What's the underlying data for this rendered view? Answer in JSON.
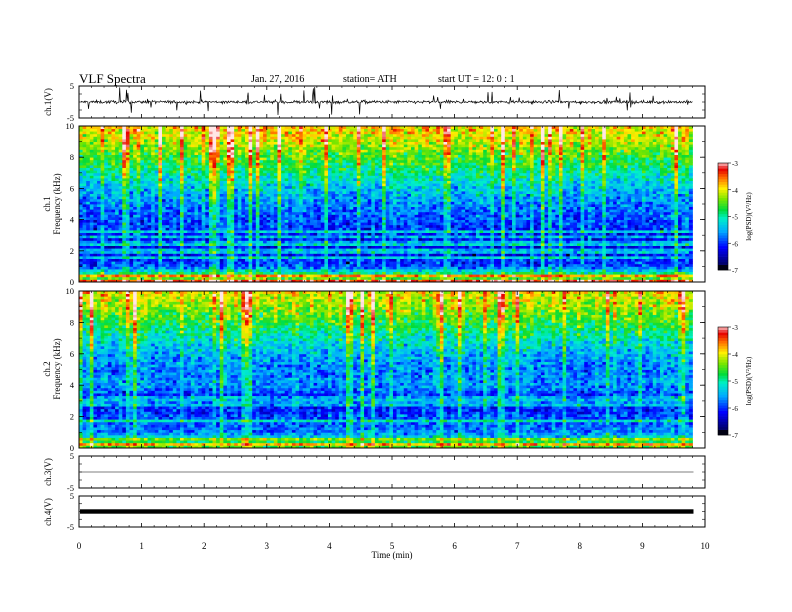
{
  "header": {
    "title": "VLF  Spectra",
    "date": "Jan. 27, 2016",
    "station": "station= ATH",
    "start": "start  UT  =    12: 0  : 1"
  },
  "chart_data": [
    {
      "type": "line",
      "id": "ch1-waveform",
      "ylabel": "ch.1(V)",
      "ylim": [
        -5,
        5
      ],
      "yticks": [
        "5",
        "-5"
      ],
      "xlim": [
        0,
        10
      ],
      "description_values": {
        "baseline_v": 0,
        "typical_amplitude_v": 1.5,
        "max_spike_v": 4.5
      }
    },
    {
      "type": "heatmap",
      "id": "ch1-spectrogram",
      "ylabel": "Frequency  (kHz)",
      "channel_label": "ch.1",
      "ylim": [
        0,
        10
      ],
      "yticks": [
        "0",
        "2",
        "4",
        "6",
        "8",
        "10"
      ],
      "xlim": [
        0,
        10
      ],
      "data_extent_min": 9.8,
      "colorbar": {
        "label": "log(PSD)(V²/Hz)",
        "range": [
          -7,
          -3
        ],
        "ticks": [
          "-3",
          "-4",
          "-5",
          "-6",
          "-7"
        ]
      },
      "profile": [
        {
          "f_khz": 0.0,
          "log_psd": -4.3
        },
        {
          "f_khz": 0.5,
          "log_psd": -4.8
        },
        {
          "f_khz": 1.0,
          "log_psd": -6.0
        },
        {
          "f_khz": 2.0,
          "log_psd": -6.3
        },
        {
          "f_khz": 3.0,
          "log_psd": -6.2
        },
        {
          "f_khz": 4.0,
          "log_psd": -6.0
        },
        {
          "f_khz": 5.0,
          "log_psd": -5.8
        },
        {
          "f_khz": 6.0,
          "log_psd": -5.5
        },
        {
          "f_khz": 7.0,
          "log_psd": -5.1
        },
        {
          "f_khz": 8.0,
          "log_psd": -4.7
        },
        {
          "f_khz": 9.0,
          "log_psd": -4.3
        },
        {
          "f_khz": 10.0,
          "log_psd": -4.0
        }
      ]
    },
    {
      "type": "heatmap",
      "id": "ch2-spectrogram",
      "ylabel": "Frequency  (kHz)",
      "channel_label": "ch.2",
      "ylim": [
        0,
        10
      ],
      "yticks": [
        "0",
        "2",
        "4",
        "6",
        "8",
        "10"
      ],
      "xlim": [
        0,
        10
      ],
      "data_extent_min": 9.8,
      "colorbar": {
        "label": "log(PSD)(V²/Hz)",
        "range": [
          -7,
          -3
        ],
        "ticks": [
          "-3",
          "-4",
          "-5",
          "-6",
          "-7"
        ]
      },
      "profile": [
        {
          "f_khz": 0.0,
          "log_psd": -4.5
        },
        {
          "f_khz": 0.5,
          "log_psd": -5.0
        },
        {
          "f_khz": 1.0,
          "log_psd": -5.8
        },
        {
          "f_khz": 2.0,
          "log_psd": -6.0
        },
        {
          "f_khz": 3.0,
          "log_psd": -6.3
        },
        {
          "f_khz": 4.0,
          "log_psd": -5.7
        },
        {
          "f_khz": 5.0,
          "log_psd": -5.8
        },
        {
          "f_khz": 6.0,
          "log_psd": -5.6
        },
        {
          "f_khz": 7.0,
          "log_psd": -5.2
        },
        {
          "f_khz": 8.0,
          "log_psd": -4.8
        },
        {
          "f_khz": 9.0,
          "log_psd": -4.4
        },
        {
          "f_khz": 10.0,
          "log_psd": -4.1
        }
      ]
    },
    {
      "type": "line",
      "id": "ch3-waveform",
      "ylabel": "ch.3(V)",
      "ylim": [
        -5,
        5
      ],
      "yticks": [
        "5",
        "-5"
      ],
      "xlim": [
        0,
        10
      ],
      "description_values": {
        "baseline_v": 0
      }
    },
    {
      "type": "line",
      "id": "ch4-waveform",
      "ylabel": "ch.4(V)",
      "ylim": [
        -5,
        5
      ],
      "yticks": [
        "5",
        "-5"
      ],
      "xlim": [
        0,
        10
      ],
      "description_values": {
        "baseline_v": 0
      }
    }
  ],
  "xaxis": {
    "label": "Time  (min)",
    "ticks": [
      "0",
      "1",
      "2",
      "3",
      "4",
      "5",
      "6",
      "7",
      "8",
      "9",
      "10"
    ],
    "range": [
      0,
      10
    ]
  }
}
